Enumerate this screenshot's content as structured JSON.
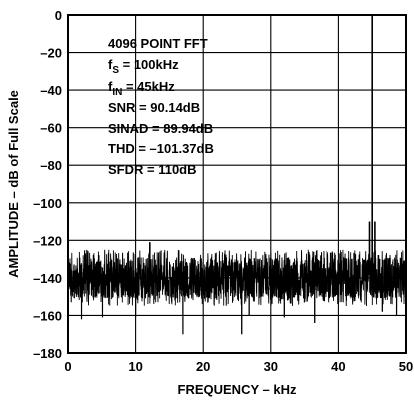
{
  "chart_data": {
    "type": "line",
    "title": "",
    "xlabel": "FREQUENCY – kHz",
    "ylabel": "AMPLITUDE – dB of Full Scale",
    "xlim": [
      0,
      50
    ],
    "ylim": [
      -180,
      0
    ],
    "x_ticks": [
      "0",
      "10",
      "20",
      "30",
      "40",
      "50"
    ],
    "y_ticks": [
      "0",
      "–20",
      "–40",
      "–60",
      "–80",
      "–100",
      "–120",
      "–140",
      "–160",
      "–180"
    ],
    "grid": true,
    "annotations": {
      "points": "4096 POINT FFT",
      "fs": "f",
      "fs_sub": "S",
      "fs_val": " = 100kHz",
      "fin": "f",
      "fin_sub": "IN",
      "fin_val": " = 45kHz",
      "snr": "SNR = 90.14dB",
      "sinad": "SINAD = 89.94dB",
      "thd": "THD = –101.37dB",
      "sfdr": "SFDR = 110dB"
    },
    "series": [
      {
        "values_description_free": true,
        "noise_floor_range": [
          -155,
          -125
        ],
        "spikes": [
          {
            "x": 0,
            "y": -3
          },
          {
            "x": 12.1,
            "y": -121
          },
          {
            "x": 45,
            "y": 0
          },
          {
            "x": 44.6,
            "y": -110
          },
          {
            "x": 45.4,
            "y": -110
          }
        ],
        "dips": [
          {
            "x": 2.0,
            "y": -162
          },
          {
            "x": 5.1,
            "y": -161
          },
          {
            "x": 10.0,
            "y": -161
          },
          {
            "x": 17.0,
            "y": -170
          },
          {
            "x": 25.7,
            "y": -170
          },
          {
            "x": 26.8,
            "y": -160
          },
          {
            "x": 32.0,
            "y": -161
          },
          {
            "x": 36.5,
            "y": -164
          },
          {
            "x": 46.5,
            "y": -158
          },
          {
            "x": 48.6,
            "y": -160
          }
        ]
      }
    ]
  }
}
